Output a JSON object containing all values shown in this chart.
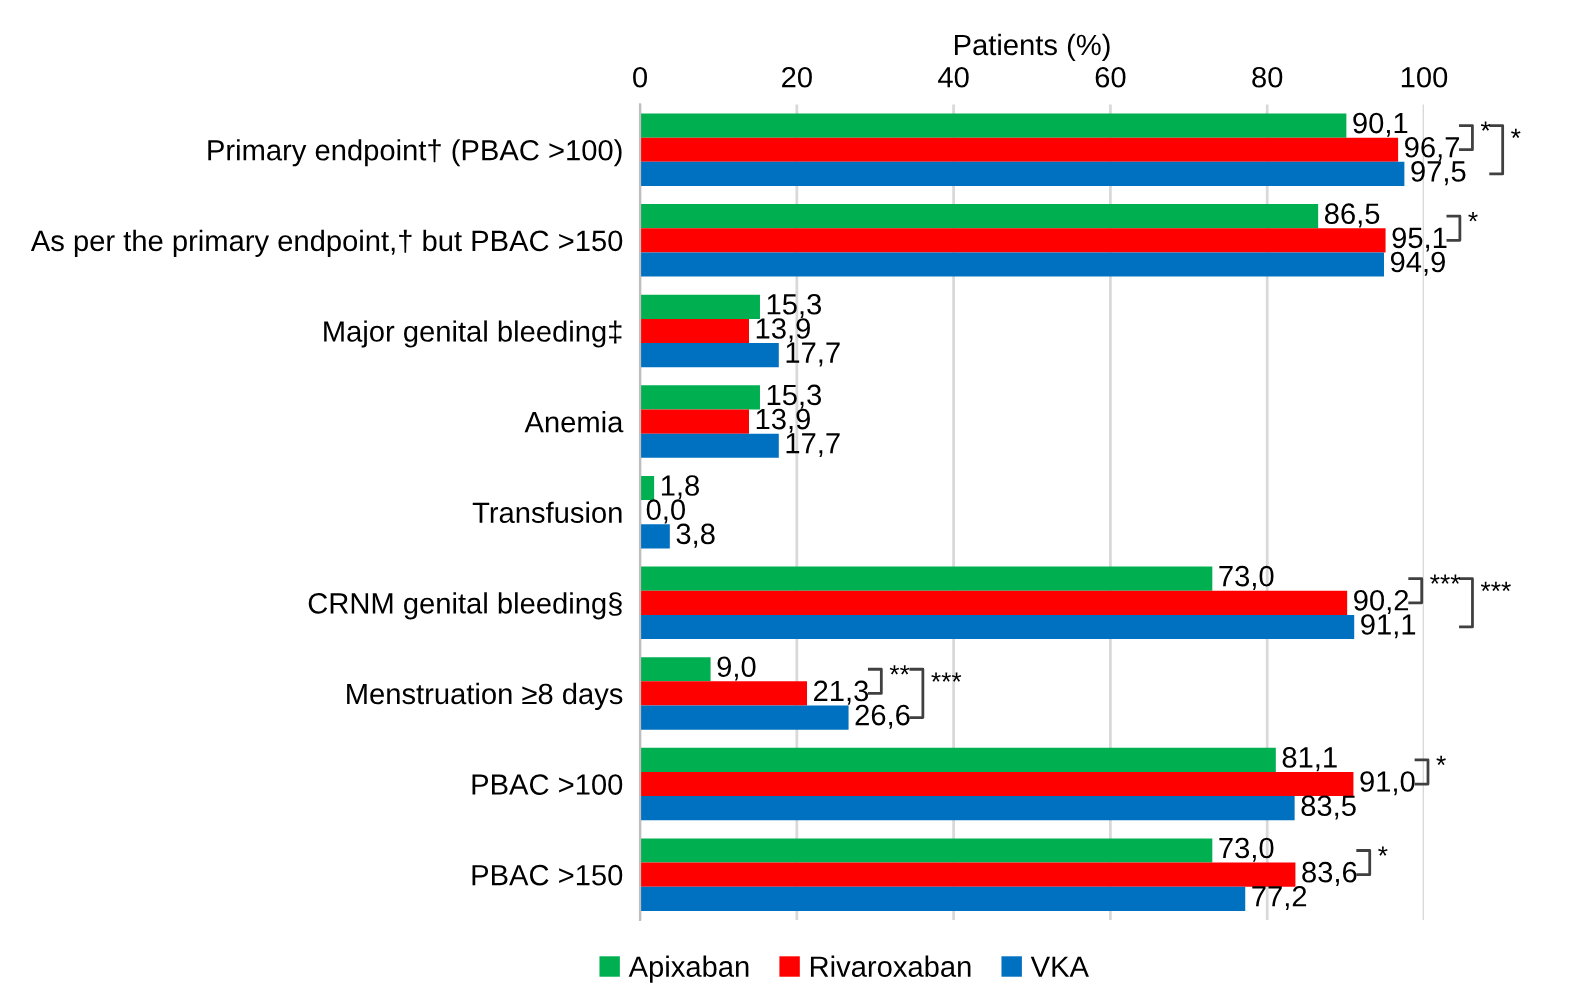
{
  "chart_data": {
    "type": "bar",
    "orientation": "horizontal",
    "xlabel": "Patients (%)",
    "categories": [
      "Primary endpoint† (PBAC >100)",
      "As per the primary endpoint,† but PBAC >150",
      "Major genital bleeding‡",
      "Anemia",
      "Transfusion",
      "CRNM genital bleeding§",
      "Menstruation ≥8 days",
      "PBAC >100",
      "PBAC >150"
    ],
    "series": [
      {
        "name": "Apixaban",
        "color": "#00b050",
        "values": [
          90.1,
          86.5,
          15.3,
          15.3,
          1.8,
          73.0,
          9.0,
          81.1,
          73.0
        ],
        "value_labels": [
          "90,1",
          "86,5",
          "15,3",
          "15,3",
          "1,8",
          "73,0",
          "9,0",
          "81,1",
          "73,0"
        ]
      },
      {
        "name": "Rivaroxaban",
        "color": "#ff0000",
        "values": [
          96.7,
          95.1,
          13.9,
          13.9,
          0.0,
          90.2,
          21.3,
          91.0,
          83.6
        ],
        "value_labels": [
          "96,7",
          "95,1",
          "13,9",
          "13,9",
          "0,0",
          "90,2",
          "21,3",
          "91,0",
          "83,6"
        ]
      },
      {
        "name": "VKA",
        "color": "#0070c0",
        "values": [
          97.5,
          94.9,
          17.7,
          17.7,
          3.8,
          91.1,
          26.6,
          83.5,
          77.2
        ],
        "value_labels": [
          "97,5",
          "94,9",
          "17,7",
          "17,7",
          "3,8",
          "91,1",
          "26,6",
          "83,5",
          "77,2"
        ]
      }
    ],
    "xlim": [
      0,
      100
    ],
    "xticks": [
      0,
      20,
      40,
      60,
      80,
      100
    ],
    "grid": "x",
    "legend": "bottom",
    "annotations": [
      "*",
      "*",
      "*",
      "***",
      "***",
      "**",
      "***",
      "*",
      "*"
    ]
  }
}
